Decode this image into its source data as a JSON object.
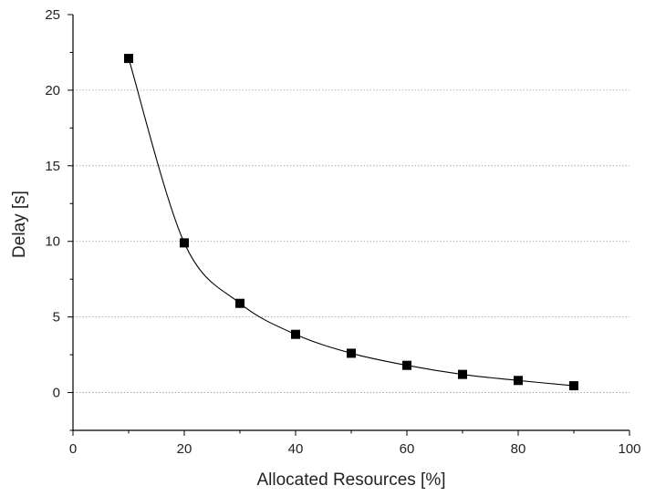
{
  "chart_data": {
    "type": "scatter",
    "title": "",
    "xlabel": "Allocated Resources [%]",
    "ylabel": "Delay [s]",
    "xlim": [
      0,
      100
    ],
    "ylim": [
      -2.5,
      25
    ],
    "x_ticks": [
      0,
      20,
      40,
      60,
      80,
      100
    ],
    "y_ticks": [
      0,
      5,
      10,
      15,
      20,
      25
    ],
    "x_tick_labels": [
      "0",
      "20",
      "40",
      "60",
      "80",
      "100"
    ],
    "y_tick_labels": [
      "0",
      "5",
      "10",
      "15",
      "20",
      "25"
    ],
    "grid": "horizontal-dotted",
    "legend": "none",
    "marker": "square",
    "marker_color": "#000000",
    "line_color": "#000000",
    "fit_line": "smooth",
    "series": [
      {
        "x": [
          10,
          20,
          30,
          40,
          50,
          60,
          70,
          80,
          90
        ],
        "y": [
          22.1,
          9.9,
          5.9,
          3.85,
          2.6,
          1.8,
          1.2,
          0.8,
          0.45
        ]
      }
    ]
  }
}
